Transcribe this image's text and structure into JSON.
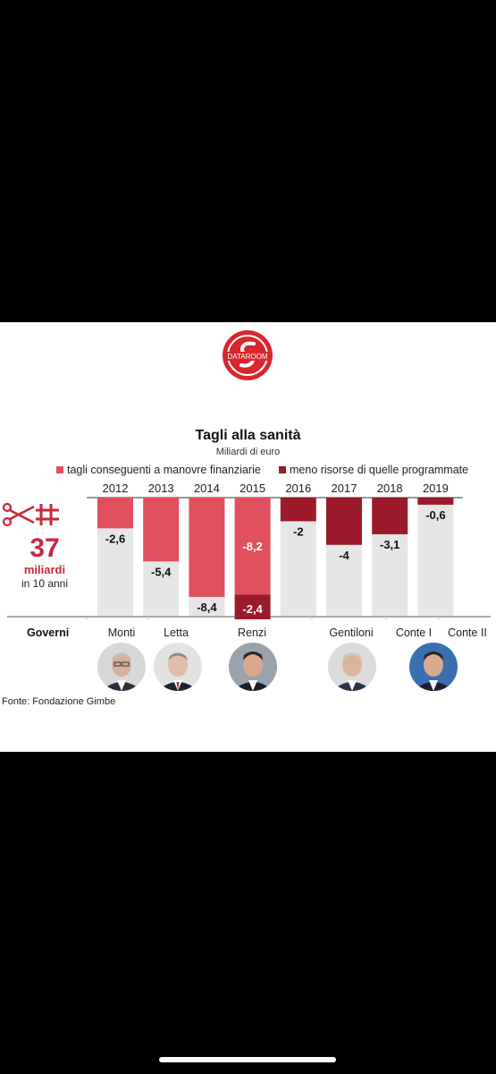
{
  "logo": {
    "text": "DATAROOM"
  },
  "chart_data": {
    "type": "bar",
    "title": "Tagli alla sanità",
    "subtitle": "Miliardi di euro",
    "categories": [
      "2012",
      "2013",
      "2014",
      "2015",
      "2016",
      "2017",
      "2018",
      "2019"
    ],
    "ylim": [
      -10,
      0
    ],
    "series": [
      {
        "name": "tagli conseguenti a manovre finanziarie",
        "color": "#e0505e",
        "values": [
          -2.6,
          -5.4,
          -8.4,
          -8.2,
          0,
          0,
          0,
          0
        ],
        "labels": [
          "-2,6",
          "-5,4",
          "-8,4",
          "-8,2",
          "",
          "",
          "",
          ""
        ]
      },
      {
        "name": "meno risorse di quelle programmate",
        "color": "#9b1b2a",
        "values": [
          0,
          0,
          0,
          -2.4,
          -2,
          -4,
          -3.1,
          -0.6
        ],
        "labels": [
          "",
          "",
          "",
          "-2,4",
          "-2",
          "-4",
          "-3,1",
          "-0,6"
        ]
      }
    ],
    "background_color": "#e6e6e6",
    "legend_position": "top"
  },
  "summary": {
    "value": "37",
    "unit": "miliardi",
    "caption": "in 10 anni"
  },
  "governments": {
    "label": "Governi",
    "names": [
      "Monti",
      "Letta",
      "Renzi",
      "Gentiloni",
      "Conte I",
      "Conte II"
    ]
  },
  "source": "Fonte: Fondazione Gimbe"
}
